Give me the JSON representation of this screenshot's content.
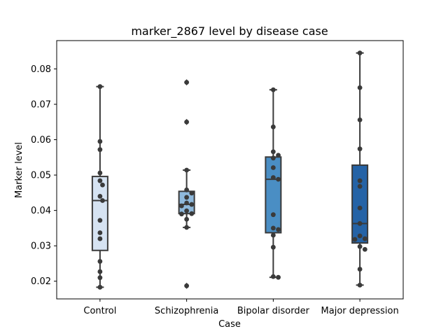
{
  "chart_data": {
    "type": "box",
    "title": "marker_2867 level by disease case",
    "xlabel": "Case",
    "ylabel": "Marker level",
    "ylim": [
      0.015,
      0.088
    ],
    "yticks": [
      0.02,
      0.03,
      0.04,
      0.05,
      0.06,
      0.07,
      0.08
    ],
    "ytick_labels": [
      "0.02",
      "0.03",
      "0.04",
      "0.05",
      "0.06",
      "0.07",
      "0.08"
    ],
    "grid": false,
    "categories": [
      "Control",
      "Schizophrenia",
      "Bipolar disorder",
      "Major depression"
    ],
    "colors": [
      "#d6e3f2",
      "#8fb9dc",
      "#4a8ec4",
      "#2563a6"
    ],
    "boxes": [
      {
        "category": "Control",
        "whislo": 0.0183,
        "q1": 0.0287,
        "median": 0.0428,
        "q3": 0.0496,
        "whishi": 0.075,
        "fliers": []
      },
      {
        "category": "Schizophrenia",
        "whislo": 0.0352,
        "q1": 0.0391,
        "median": 0.0417,
        "q3": 0.0454,
        "whishi": 0.0514,
        "fliers": [
          0.0762,
          0.065,
          0.0187
        ]
      },
      {
        "category": "Bipolar disorder",
        "whislo": 0.0211,
        "q1": 0.0337,
        "median": 0.0488,
        "q3": 0.0551,
        "whishi": 0.0741,
        "fliers": []
      },
      {
        "category": "Major depression",
        "whislo": 0.0189,
        "q1": 0.0308,
        "median": 0.0363,
        "q3": 0.0528,
        "whishi": 0.0845,
        "fliers": []
      }
    ],
    "points": [
      [
        0.075,
        0.0595,
        0.0572,
        0.0506,
        0.0484,
        0.0472,
        0.044,
        0.0428,
        0.0372,
        0.0337,
        0.032,
        0.0256,
        0.0227,
        0.021,
        0.0183
      ],
      [
        0.0762,
        0.065,
        0.0514,
        0.0458,
        0.0449,
        0.0437,
        0.0421,
        0.0417,
        0.0413,
        0.0399,
        0.0391,
        0.039,
        0.0375,
        0.0352,
        0.0187
      ],
      [
        0.0741,
        0.0636,
        0.0566,
        0.0556,
        0.0548,
        0.0521,
        0.0493,
        0.0488,
        0.0388,
        0.035,
        0.0346,
        0.033,
        0.0296,
        0.0213,
        0.0211
      ],
      [
        0.0845,
        0.0747,
        0.0656,
        0.0574,
        0.0484,
        0.0468,
        0.0407,
        0.0363,
        0.0328,
        0.032,
        0.0318,
        0.0298,
        0.029,
        0.0234,
        0.0189
      ]
    ]
  }
}
